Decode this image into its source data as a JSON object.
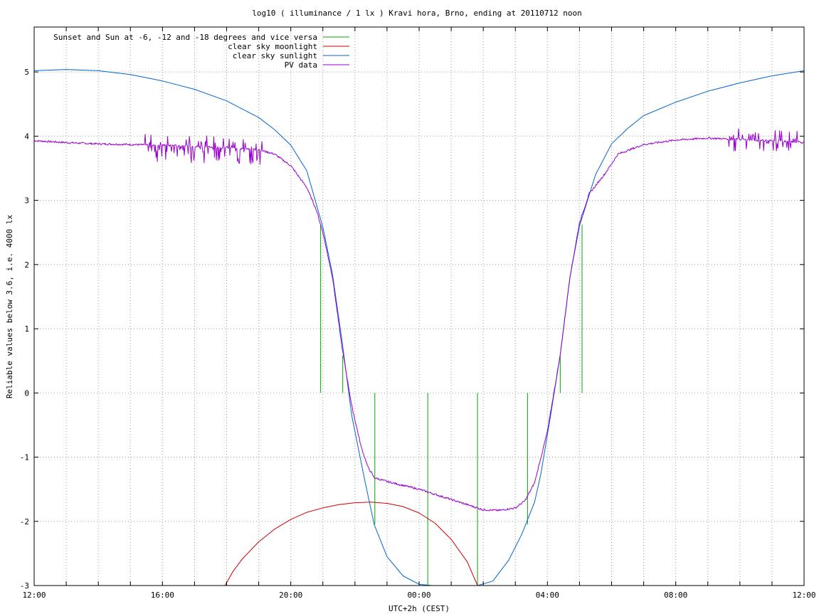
{
  "chart_data": {
    "type": "line",
    "title": "log10 ( illuminance / 1 lx ) Kravi hora, Brno, ending at 20110712 noon",
    "xlabel": "UTC+2h (CEST)",
    "ylabel": "Reliable values below 3.6, i.e. 4000 lx",
    "xlim": [
      12,
      36
    ],
    "ylim": [
      -3,
      5.7
    ],
    "grid": true,
    "legend_position": "top-left",
    "x_ticks": [
      {
        "x": 12,
        "label": "12:00"
      },
      {
        "x": 13,
        "label": ""
      },
      {
        "x": 14,
        "label": ""
      },
      {
        "x": 15,
        "label": ""
      },
      {
        "x": 16,
        "label": "16:00"
      },
      {
        "x": 17,
        "label": ""
      },
      {
        "x": 18,
        "label": ""
      },
      {
        "x": 19,
        "label": ""
      },
      {
        "x": 20,
        "label": "20:00"
      },
      {
        "x": 21,
        "label": ""
      },
      {
        "x": 22,
        "label": ""
      },
      {
        "x": 23,
        "label": ""
      },
      {
        "x": 24,
        "label": "00:00"
      },
      {
        "x": 25,
        "label": ""
      },
      {
        "x": 26,
        "label": ""
      },
      {
        "x": 27,
        "label": ""
      },
      {
        "x": 28,
        "label": "04:00"
      },
      {
        "x": 29,
        "label": ""
      },
      {
        "x": 30,
        "label": ""
      },
      {
        "x": 31,
        "label": ""
      },
      {
        "x": 32,
        "label": "08:00"
      },
      {
        "x": 33,
        "label": ""
      },
      {
        "x": 34,
        "label": ""
      },
      {
        "x": 35,
        "label": ""
      },
      {
        "x": 36,
        "label": "12:00"
      }
    ],
    "y_ticks": [
      {
        "y": -3,
        "label": "-3"
      },
      {
        "y": -2,
        "label": "-2"
      },
      {
        "y": -1,
        "label": "-1"
      },
      {
        "y": 0,
        "label": "0"
      },
      {
        "y": 1,
        "label": "1"
      },
      {
        "y": 2,
        "label": "2"
      },
      {
        "y": 3,
        "label": "3"
      },
      {
        "y": 4,
        "label": "4"
      },
      {
        "y": 5,
        "label": "5"
      }
    ],
    "series": [
      {
        "name": "Sunset and Sun at -6, -12 and -18 degrees and vice versa",
        "kind": "impulses",
        "color": "#00aa00",
        "points": [
          [
            20.93,
            2.62
          ],
          [
            21.62,
            0.58
          ],
          [
            22.62,
            -2.05
          ],
          [
            24.27,
            -3.0
          ],
          [
            25.82,
            -3.0
          ],
          [
            27.38,
            -2.05
          ],
          [
            28.4,
            0.58
          ],
          [
            29.08,
            2.62
          ]
        ]
      },
      {
        "name": "clear sky moonlight",
        "kind": "line",
        "color": "#cc0000",
        "points": [
          [
            17.95,
            -3.0
          ],
          [
            18.2,
            -2.78
          ],
          [
            18.5,
            -2.58
          ],
          [
            19.0,
            -2.32
          ],
          [
            19.5,
            -2.12
          ],
          [
            20.0,
            -1.97
          ],
          [
            20.5,
            -1.86
          ],
          [
            21.0,
            -1.79
          ],
          [
            21.5,
            -1.74
          ],
          [
            22.0,
            -1.71
          ],
          [
            22.5,
            -1.7
          ],
          [
            23.0,
            -1.72
          ],
          [
            23.5,
            -1.77
          ],
          [
            24.0,
            -1.87
          ],
          [
            24.5,
            -2.03
          ],
          [
            25.0,
            -2.28
          ],
          [
            25.5,
            -2.63
          ],
          [
            25.82,
            -3.0
          ]
        ]
      },
      {
        "name": "clear sky sunlight",
        "kind": "line",
        "color": "#0066cc",
        "points": [
          [
            12.0,
            5.02
          ],
          [
            13.0,
            5.04
          ],
          [
            14.0,
            5.02
          ],
          [
            15.0,
            4.96
          ],
          [
            16.0,
            4.86
          ],
          [
            17.0,
            4.73
          ],
          [
            18.0,
            4.55
          ],
          [
            19.0,
            4.29
          ],
          [
            19.5,
            4.1
          ],
          [
            20.0,
            3.86
          ],
          [
            20.5,
            3.46
          ],
          [
            21.0,
            2.58
          ],
          [
            21.3,
            1.85
          ],
          [
            21.6,
            0.8
          ],
          [
            21.9,
            -0.35
          ],
          [
            22.3,
            -1.35
          ],
          [
            22.6,
            -2.05
          ],
          [
            23.0,
            -2.55
          ],
          [
            23.5,
            -2.85
          ],
          [
            24.0,
            -2.98
          ],
          [
            24.4,
            -3.0
          ],
          [
            25.82,
            -3.0
          ],
          [
            26.3,
            -2.93
          ],
          [
            26.8,
            -2.6
          ],
          [
            27.2,
            -2.2
          ],
          [
            27.6,
            -1.7
          ],
          [
            27.8,
            -1.25
          ],
          [
            28.1,
            -0.35
          ],
          [
            28.4,
            0.6
          ],
          [
            28.7,
            1.8
          ],
          [
            29.0,
            2.6
          ],
          [
            29.5,
            3.4
          ],
          [
            30.0,
            3.88
          ],
          [
            30.5,
            4.12
          ],
          [
            31.0,
            4.32
          ],
          [
            32.0,
            4.53
          ],
          [
            33.0,
            4.7
          ],
          [
            34.0,
            4.83
          ],
          [
            35.0,
            4.94
          ],
          [
            36.0,
            5.02
          ]
        ]
      },
      {
        "name": "PV data",
        "kind": "line",
        "color": "#9900cc",
        "points": [
          [
            12.0,
            3.93
          ],
          [
            13.0,
            3.9
          ],
          [
            14.0,
            3.88
          ],
          [
            15.0,
            3.87
          ],
          [
            16.0,
            3.86
          ],
          [
            17.0,
            3.84
          ],
          [
            18.0,
            3.82
          ],
          [
            19.0,
            3.79
          ],
          [
            19.5,
            3.72
          ],
          [
            20.0,
            3.54
          ],
          [
            20.5,
            3.2
          ],
          [
            20.8,
            2.85
          ],
          [
            21.0,
            2.5
          ],
          [
            21.3,
            1.8
          ],
          [
            21.6,
            0.7
          ],
          [
            21.9,
            -0.2
          ],
          [
            22.2,
            -0.85
          ],
          [
            22.4,
            -1.15
          ],
          [
            22.6,
            -1.32
          ],
          [
            23.0,
            -1.38
          ],
          [
            23.5,
            -1.44
          ],
          [
            24.0,
            -1.5
          ],
          [
            24.5,
            -1.58
          ],
          [
            25.0,
            -1.66
          ],
          [
            25.5,
            -1.74
          ],
          [
            26.0,
            -1.82
          ],
          [
            26.5,
            -1.83
          ],
          [
            27.0,
            -1.79
          ],
          [
            27.3,
            -1.68
          ],
          [
            27.6,
            -1.4
          ],
          [
            28.0,
            -0.6
          ],
          [
            28.4,
            0.6
          ],
          [
            28.7,
            1.8
          ],
          [
            29.0,
            2.65
          ],
          [
            29.3,
            3.1
          ],
          [
            29.8,
            3.42
          ],
          [
            30.2,
            3.72
          ],
          [
            31.0,
            3.87
          ],
          [
            32.0,
            3.94
          ],
          [
            33.0,
            3.97
          ],
          [
            34.0,
            3.95
          ],
          [
            35.0,
            3.93
          ],
          [
            36.0,
            3.9
          ]
        ]
      }
    ],
    "pv_noise_segments": [
      {
        "x_start": 15.3,
        "x_end": 19.1,
        "low": -0.27,
        "high": 0.18
      },
      {
        "x_start": 33.6,
        "x_end": 35.8,
        "low": -0.2,
        "high": 0.18
      }
    ]
  }
}
